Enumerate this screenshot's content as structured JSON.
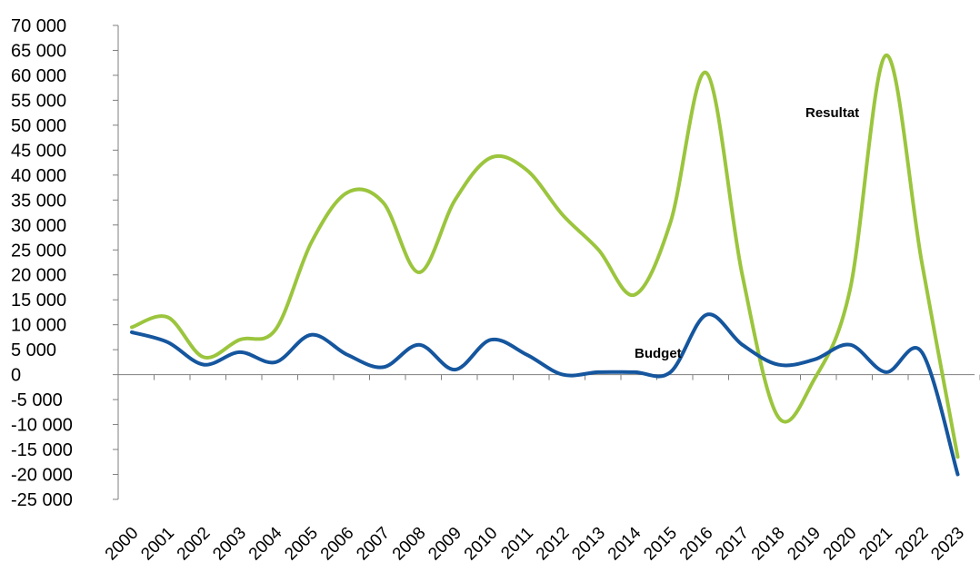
{
  "chart_data": {
    "type": "line",
    "title": "",
    "xlabel": "",
    "ylabel": "",
    "x": [
      "2000",
      "2001",
      "2002",
      "2003",
      "2004",
      "2005",
      "2006",
      "2007",
      "2008",
      "2009",
      "2010",
      "2011",
      "2012",
      "2013",
      "2014",
      "2015",
      "2016",
      "2017",
      "2018",
      "2019",
      "2020",
      "2021",
      "2022",
      "2023"
    ],
    "ylim": [
      -25000,
      70000
    ],
    "ytick_step": 5000,
    "ytick_labels": [
      "70 000",
      "65 000",
      "60 000",
      "55 000",
      "50 000",
      "45 000",
      "40 000",
      "35 000",
      "30 000",
      "25 000",
      "20 000",
      "15 000",
      "10 000",
      "5 000",
      "0",
      "-5 000",
      "-10 000",
      "-15 000",
      "-20 000",
      "-25 000"
    ],
    "grid": false,
    "legend": "none",
    "series": [
      {
        "name": "Resultat",
        "color": "#9BC53D",
        "values": [
          9500,
          11500,
          3500,
          7000,
          9000,
          26500,
          36500,
          34500,
          20500,
          35000,
          43500,
          41000,
          32000,
          25000,
          16000,
          30500,
          60500,
          20000,
          -8500,
          -1000,
          17000,
          64000,
          22500,
          -16500
        ]
      },
      {
        "name": "Budget",
        "color": "#15569E",
        "values": [
          8500,
          6500,
          2000,
          4500,
          2500,
          8000,
          4000,
          1500,
          6000,
          1000,
          7000,
          4000,
          0,
          500,
          500,
          500,
          12000,
          6000,
          2000,
          3000,
          6000,
          500,
          4500,
          -20000
        ]
      }
    ]
  }
}
